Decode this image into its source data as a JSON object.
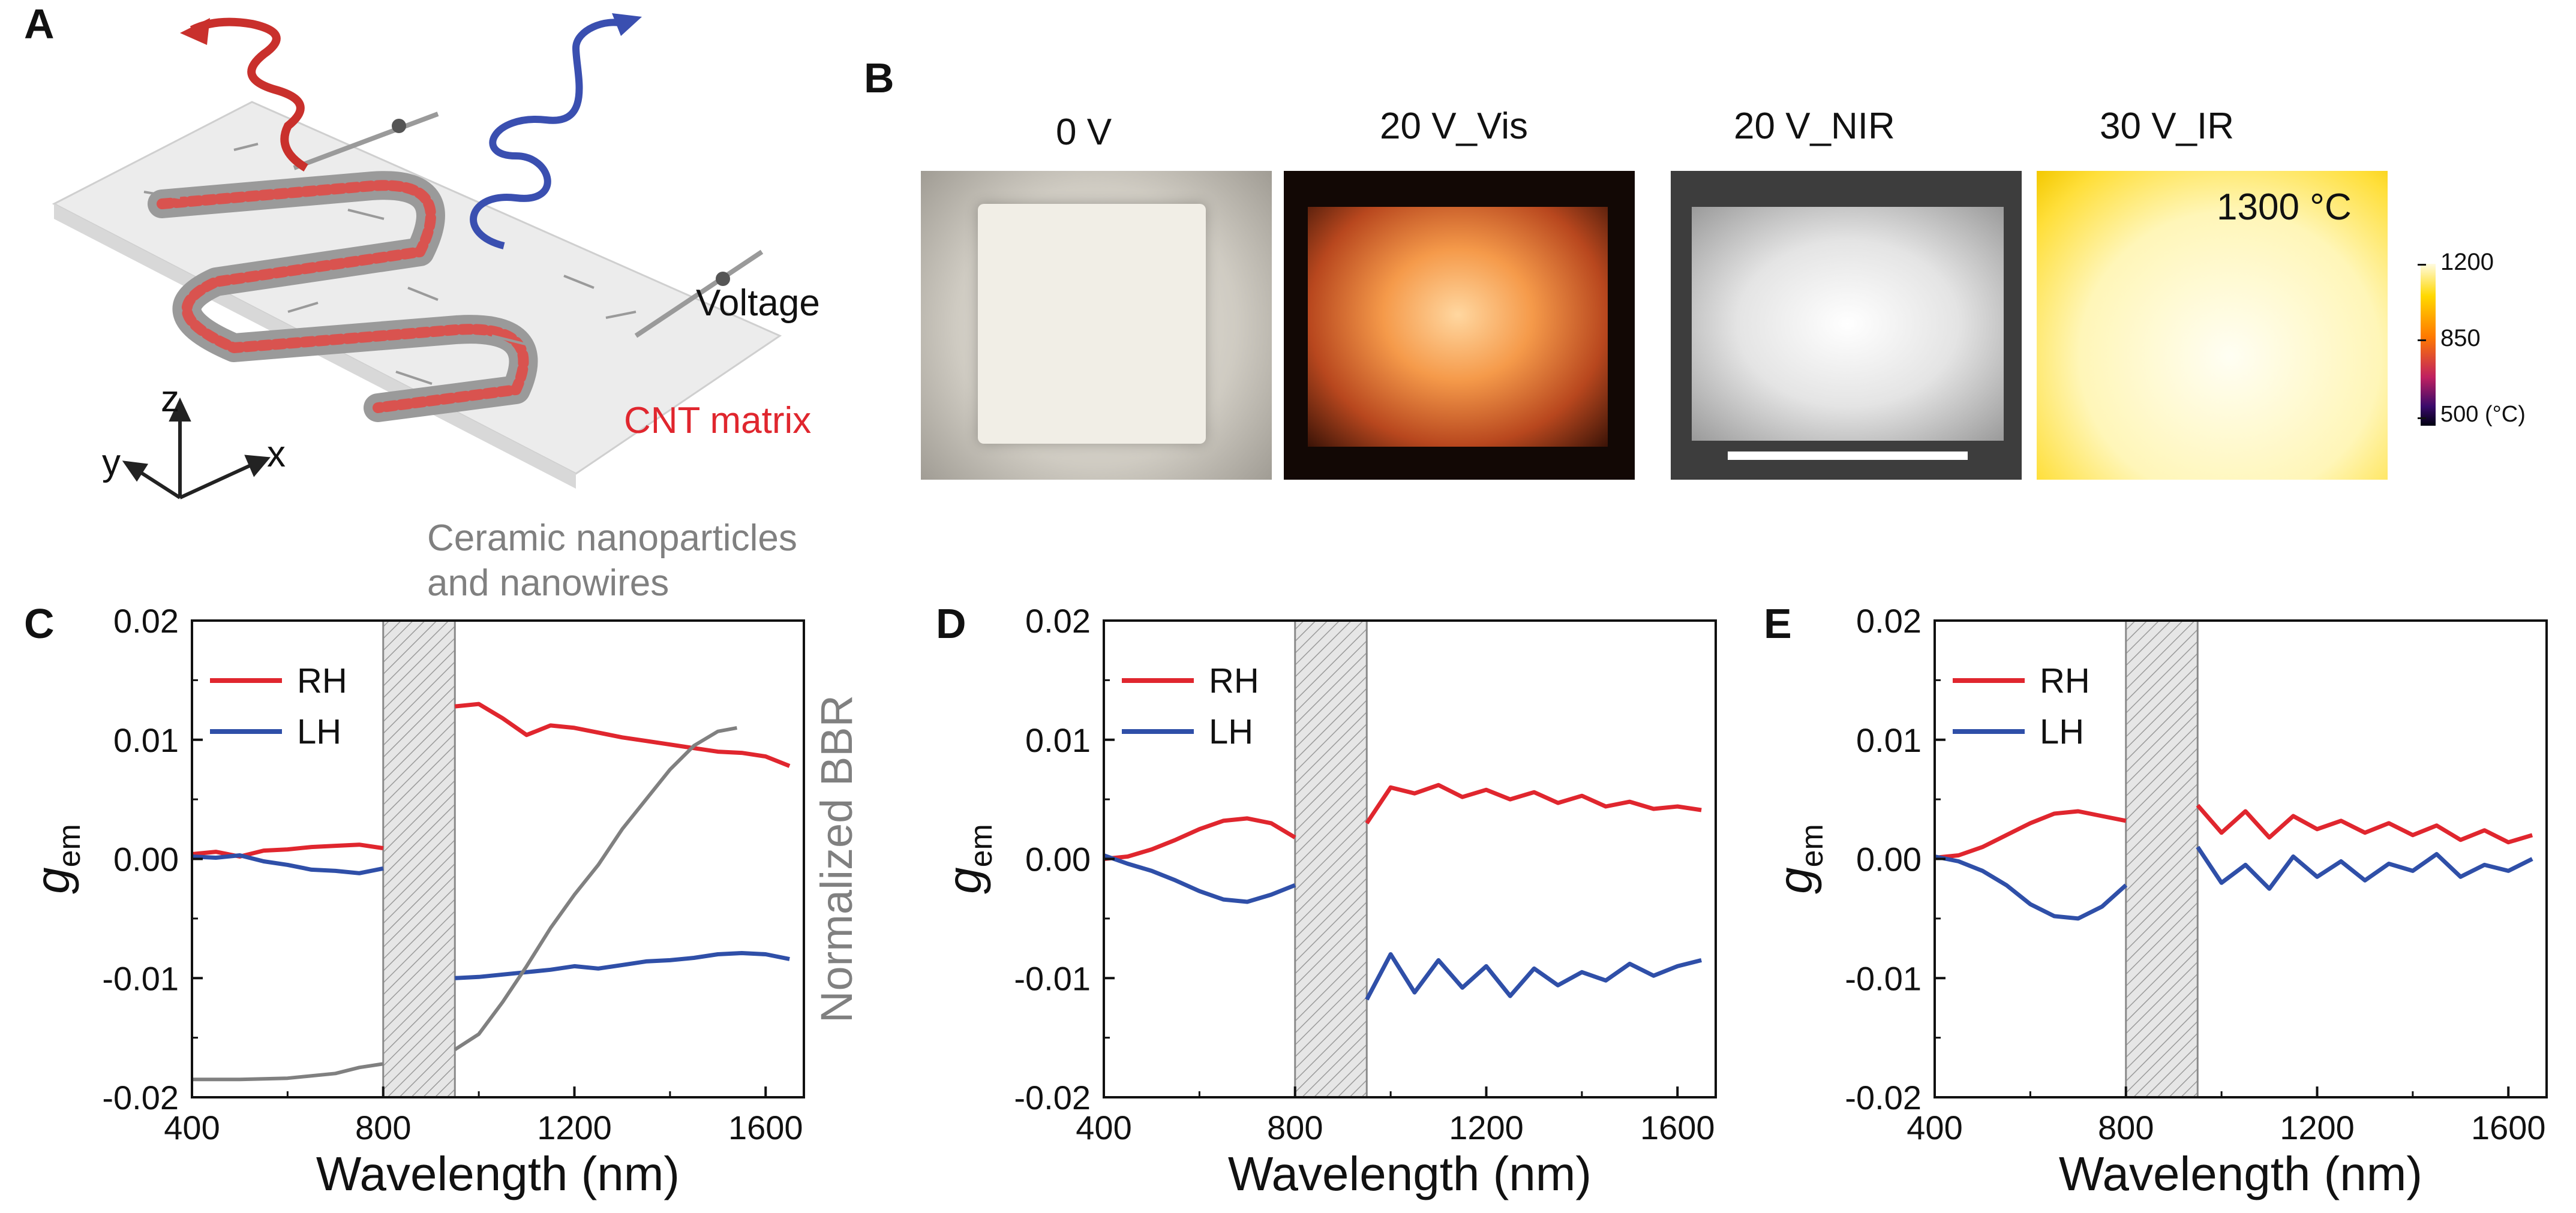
{
  "panel_letters": {
    "a": "A",
    "b": "B",
    "c": "C",
    "d": "D",
    "e": "E"
  },
  "panel_a": {
    "voltage_label": "Voltage",
    "cnt_label": "CNT matrix",
    "ceramic_label_line1": "Ceramic nanoparticles",
    "ceramic_label_line2": "and nanowires",
    "axis_x": "x",
    "axis_y": "y",
    "axis_z": "z"
  },
  "panel_b": {
    "titles": [
      "0 V",
      "20 V_Vis",
      "20 V_NIR",
      "30 V_IR"
    ],
    "temperature_label": "1300 °C",
    "colorbar": {
      "max": "1200",
      "mid": "850",
      "min": "500 (°C)"
    }
  },
  "colors": {
    "rh": "#e0262e",
    "lh": "#2f4fa8",
    "bbr": "#808080"
  },
  "chart_data": [
    {
      "panel": "C",
      "type": "line",
      "xlabel": "Wavelength (nm)",
      "ylabel": "g_em",
      "y2label": "Normalized BBR",
      "xlim": [
        400,
        1680
      ],
      "ylim": [
        -0.02,
        0.02
      ],
      "xticks": [
        "400",
        "800",
        "1200",
        "1600"
      ],
      "yticks": [
        "0.02",
        "0.01",
        "0.00",
        "-0.01",
        "-0.02"
      ],
      "masked_band": [
        800,
        950
      ],
      "legend": [
        "RH",
        "LH"
      ],
      "series": [
        {
          "name": "RH",
          "color": "#e0262e",
          "x": [
            400,
            450,
            500,
            550,
            600,
            650,
            700,
            750,
            800,
            950,
            1000,
            1050,
            1100,
            1150,
            1200,
            1250,
            1300,
            1350,
            1400,
            1450,
            1500,
            1550,
            1600,
            1650
          ],
          "y": [
            0.0004,
            0.0006,
            0.0002,
            0.0007,
            0.0008,
            0.001,
            0.0011,
            0.0012,
            0.0009,
            0.0128,
            0.013,
            0.0118,
            0.0104,
            0.0112,
            0.011,
            0.0106,
            0.0102,
            0.0099,
            0.0096,
            0.0093,
            0.009,
            0.0089,
            0.0086,
            0.0078
          ]
        },
        {
          "name": "LH",
          "color": "#2f4fa8",
          "x": [
            400,
            450,
            500,
            550,
            600,
            650,
            700,
            750,
            800,
            950,
            1000,
            1050,
            1100,
            1150,
            1200,
            1250,
            1300,
            1350,
            1400,
            1450,
            1500,
            1550,
            1600,
            1650
          ],
          "y": [
            0.0002,
            0.0001,
            0.0003,
            -0.0002,
            -0.0005,
            -0.0009,
            -0.001,
            -0.0012,
            -0.0008,
            -0.01,
            -0.0099,
            -0.0097,
            -0.0095,
            -0.0093,
            -0.009,
            -0.0092,
            -0.0089,
            -0.0086,
            -0.0085,
            -0.0083,
            -0.008,
            -0.0079,
            -0.008,
            -0.0084
          ]
        },
        {
          "name": "",
          "color": "#808080",
          "x": [
            400,
            500,
            600,
            700,
            750,
            800,
            950,
            1000,
            1050,
            1100,
            1150,
            1200,
            1250,
            1300,
            1350,
            1400,
            1450,
            1500,
            1540
          ],
          "y": [
            -0.0185,
            -0.0185,
            -0.0184,
            -0.018,
            -0.0175,
            -0.0172,
            -0.016,
            -0.0147,
            -0.012,
            -0.009,
            -0.0058,
            -0.003,
            -0.0005,
            0.0025,
            0.005,
            0.0075,
            0.0095,
            0.0107,
            0.011
          ]
        }
      ]
    },
    {
      "panel": "D",
      "type": "line",
      "xlabel": "Wavelength (nm)",
      "ylabel": "g_em",
      "xlim": [
        400,
        1680
      ],
      "ylim": [
        -0.02,
        0.02
      ],
      "xticks": [
        "400",
        "800",
        "1200",
        "1600"
      ],
      "yticks": [
        "0.02",
        "0.01",
        "0.00",
        "-0.01",
        "-0.02"
      ],
      "masked_band": [
        800,
        950
      ],
      "legend": [
        "RH",
        "LH"
      ],
      "series": [
        {
          "name": "RH",
          "color": "#e0262e",
          "x": [
            400,
            450,
            500,
            550,
            600,
            650,
            700,
            750,
            800,
            950,
            1000,
            1050,
            1100,
            1150,
            1200,
            1250,
            1300,
            1350,
            1400,
            1450,
            1500,
            1550,
            1600,
            1650
          ],
          "y": [
            0.0,
            0.0002,
            0.0008,
            0.0016,
            0.0025,
            0.0032,
            0.0034,
            0.003,
            0.0018,
            0.003,
            0.006,
            0.0055,
            0.0062,
            0.0052,
            0.0058,
            0.005,
            0.0056,
            0.0047,
            0.0053,
            0.0044,
            0.0048,
            0.0042,
            0.0044,
            0.0041
          ]
        },
        {
          "name": "LH",
          "color": "#2f4fa8",
          "x": [
            400,
            450,
            500,
            550,
            600,
            650,
            700,
            750,
            800,
            950,
            1000,
            1050,
            1100,
            1150,
            1200,
            1250,
            1300,
            1350,
            1400,
            1450,
            1500,
            1550,
            1600,
            1650
          ],
          "y": [
            0.0003,
            -0.0004,
            -0.001,
            -0.0018,
            -0.0027,
            -0.0034,
            -0.0036,
            -0.003,
            -0.0022,
            -0.0118,
            -0.008,
            -0.0112,
            -0.0085,
            -0.0108,
            -0.009,
            -0.0115,
            -0.0092,
            -0.0106,
            -0.0095,
            -0.0102,
            -0.0088,
            -0.0098,
            -0.009,
            -0.0085
          ]
        }
      ]
    },
    {
      "panel": "E",
      "type": "line",
      "xlabel": "Wavelength (nm)",
      "ylabel": "g_em",
      "xlim": [
        400,
        1680
      ],
      "ylim": [
        -0.02,
        0.02
      ],
      "xticks": [
        "400",
        "800",
        "1200",
        "1600"
      ],
      "yticks": [
        "0.02",
        "0.01",
        "0.00",
        "-0.01",
        "-0.02"
      ],
      "masked_band": [
        800,
        950
      ],
      "legend": [
        "RH",
        "LH"
      ],
      "series": [
        {
          "name": "RH",
          "color": "#e0262e",
          "x": [
            400,
            450,
            500,
            550,
            600,
            650,
            700,
            750,
            800,
            950,
            1000,
            1050,
            1100,
            1150,
            1200,
            1250,
            1300,
            1350,
            1400,
            1450,
            1500,
            1550,
            1600,
            1650
          ],
          "y": [
            0.0001,
            0.0003,
            0.001,
            0.002,
            0.003,
            0.0038,
            0.004,
            0.0036,
            0.0032,
            0.0045,
            0.0022,
            0.004,
            0.0018,
            0.0036,
            0.0025,
            0.0032,
            0.0022,
            0.003,
            0.002,
            0.0028,
            0.0016,
            0.0024,
            0.0014,
            0.002
          ]
        },
        {
          "name": "LH",
          "color": "#2f4fa8",
          "x": [
            400,
            450,
            500,
            550,
            600,
            650,
            700,
            750,
            800,
            950,
            1000,
            1050,
            1100,
            1150,
            1200,
            1250,
            1300,
            1350,
            1400,
            1450,
            1500,
            1550,
            1600,
            1650
          ],
          "y": [
            0.0002,
            -0.0002,
            -0.001,
            -0.0022,
            -0.0038,
            -0.0048,
            -0.005,
            -0.004,
            -0.0022,
            0.001,
            -0.002,
            -0.0005,
            -0.0025,
            0.0002,
            -0.0015,
            -0.0002,
            -0.0018,
            -0.0004,
            -0.001,
            0.0004,
            -0.0015,
            -0.0005,
            -0.001,
            0.0
          ]
        }
      ]
    }
  ]
}
